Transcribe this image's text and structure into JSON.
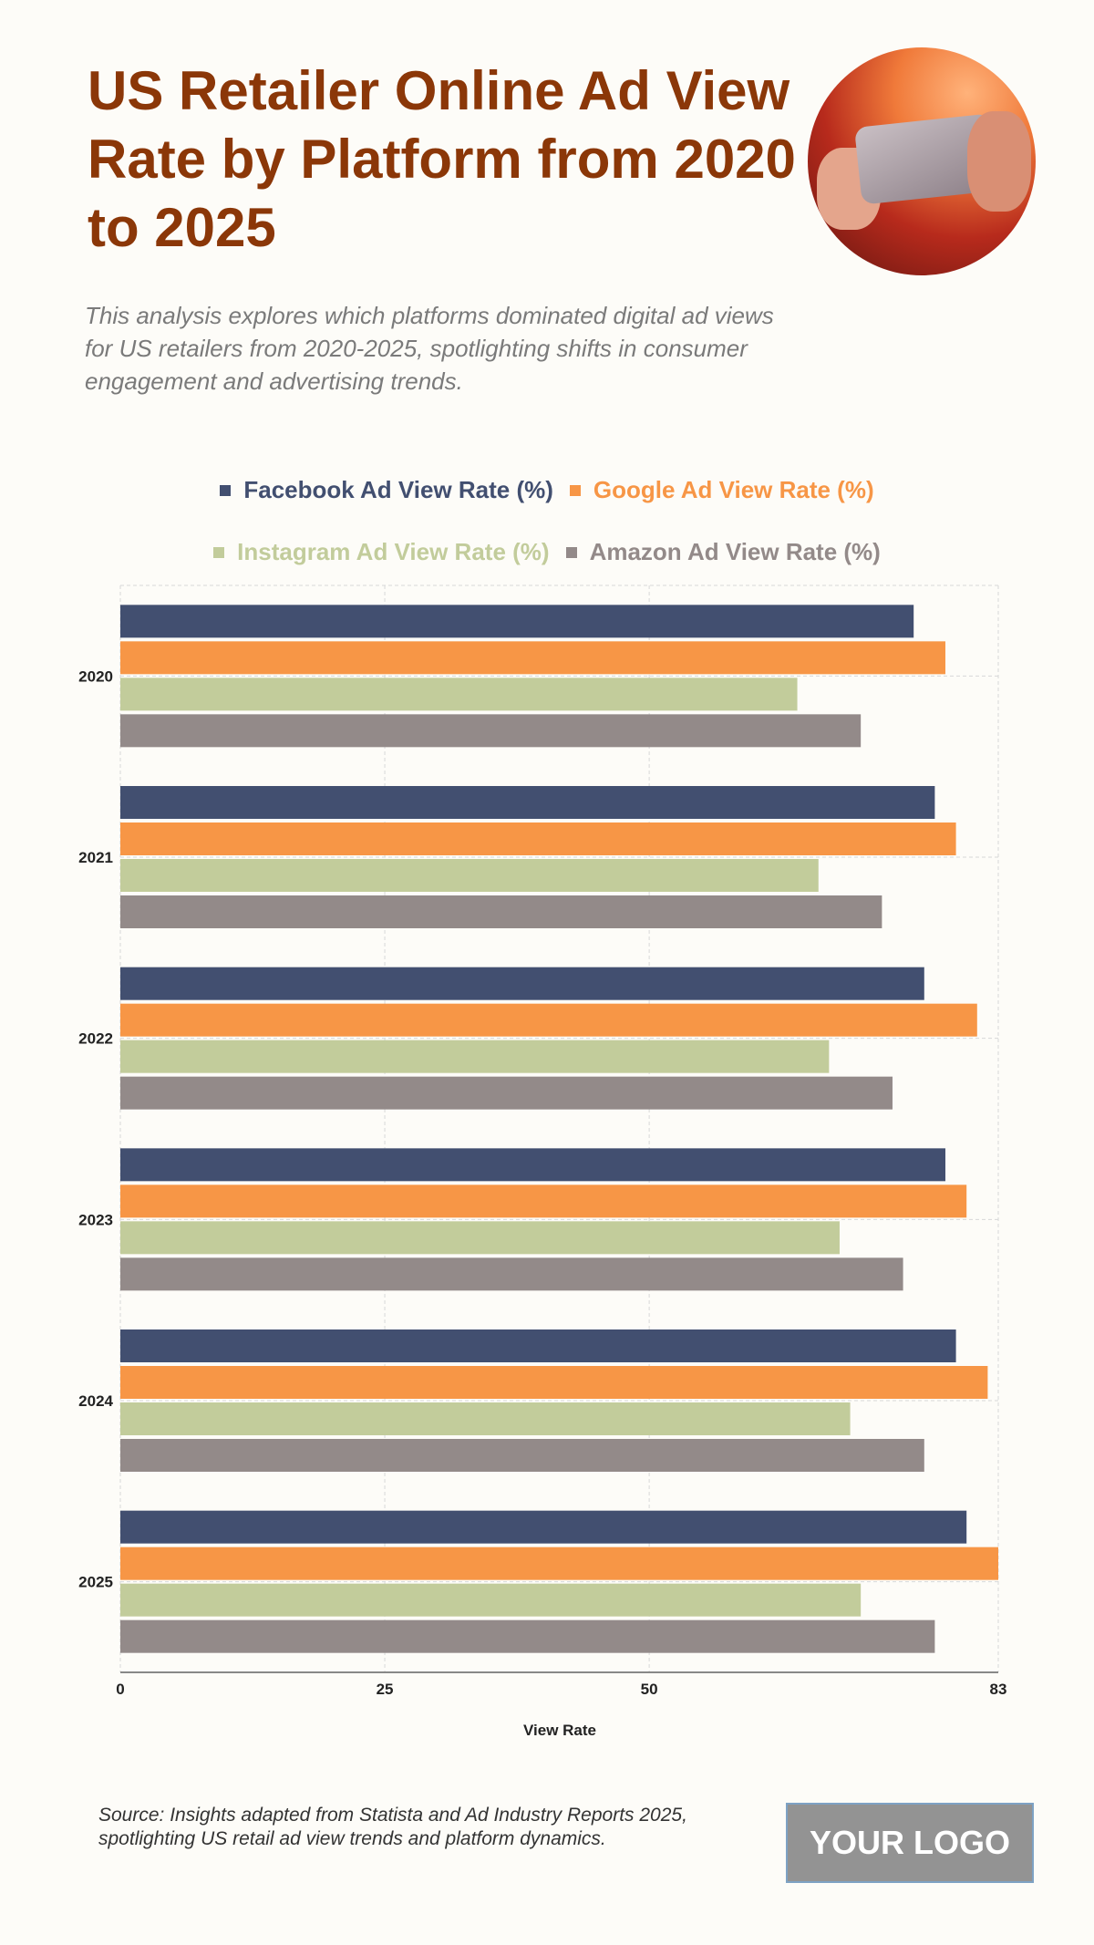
{
  "header": {
    "title": "US Retailer Online Ad View Rate by Platform from 2020 to 2025",
    "subtitle": "This analysis explores which platforms dominated digital ad views for US retailers from 2020-2025, spotlighting shifts in consumer engagement and advertising trends."
  },
  "footer": {
    "source": "Source: Insights adapted from Statista and Ad Industry Reports 2025, spotlighting US retail ad view trends and platform dynamics.",
    "logo": "YOUR LOGO"
  },
  "chart_data": {
    "type": "bar",
    "orientation": "horizontal",
    "categories": [
      "2020",
      "2021",
      "2022",
      "2023",
      "2024",
      "2025"
    ],
    "series": [
      {
        "name": "Facebook Ad View Rate (%)",
        "color": "#424f70",
        "values": [
          75,
          77,
          76,
          78,
          79,
          80
        ]
      },
      {
        "name": "Google Ad View Rate (%)",
        "color": "#f79646",
        "values": [
          78,
          79,
          81,
          80,
          82,
          83
        ]
      },
      {
        "name": "Instagram Ad View Rate (%)",
        "color": "#c2cc9b",
        "values": [
          64,
          66,
          67,
          68,
          69,
          70
        ]
      },
      {
        "name": "Amazon Ad View Rate (%)",
        "color": "#938a89",
        "values": [
          70,
          72,
          73,
          74,
          76,
          77
        ]
      }
    ],
    "xlabel": "View Rate",
    "ylabel": "",
    "xlim": [
      0,
      83
    ],
    "xticks": [
      "0",
      "25",
      "50",
      "83"
    ],
    "grid": true,
    "legend": "top"
  }
}
